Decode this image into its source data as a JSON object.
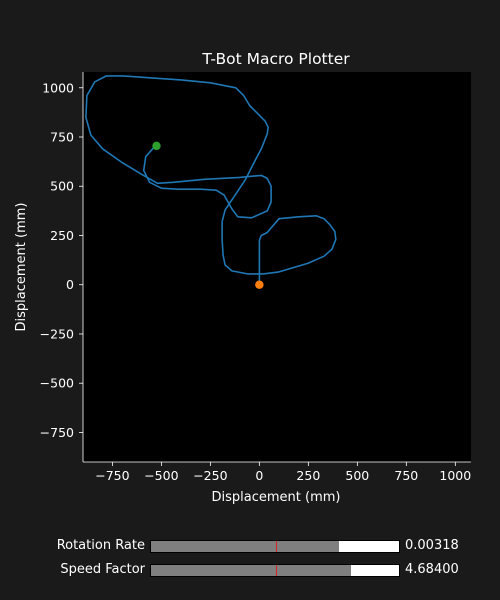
{
  "chart_data": {
    "type": "line",
    "title": "T-Bot Macro Plotter",
    "xlabel": "Displacement (mm)",
    "ylabel": "Displacement (mm)",
    "xlim": [
      -900,
      1080
    ],
    "ylim": [
      -900,
      1080
    ],
    "xticks": [
      -750,
      -500,
      -250,
      0,
      250,
      500,
      750,
      1000
    ],
    "yticks": [
      -750,
      -500,
      -250,
      0,
      250,
      500,
      750,
      1000
    ],
    "grid": false,
    "background": "#000000",
    "path_color": "#1f77b4",
    "series": [
      {
        "values": [
          [
            0,
            0
          ],
          [
            0,
            80
          ],
          [
            0,
            170
          ],
          [
            0,
            225
          ],
          [
            10,
            250
          ],
          [
            40,
            265
          ],
          [
            100,
            335
          ],
          [
            200,
            345
          ],
          [
            290,
            350
          ],
          [
            330,
            335
          ],
          [
            360,
            305
          ],
          [
            385,
            270
          ],
          [
            390,
            230
          ],
          [
            370,
            180
          ],
          [
            330,
            145
          ],
          [
            250,
            110
          ],
          [
            100,
            65
          ],
          [
            20,
            55
          ],
          [
            -60,
            55
          ],
          [
            -140,
            70
          ],
          [
            -175,
            100
          ],
          [
            -185,
            150
          ],
          [
            -190,
            230
          ],
          [
            -190,
            320
          ],
          [
            -175,
            380
          ],
          [
            -120,
            460
          ],
          [
            -70,
            535
          ],
          [
            -30,
            615
          ],
          [
            10,
            690
          ],
          [
            40,
            765
          ],
          [
            45,
            800
          ],
          [
            30,
            830
          ],
          [
            0,
            860
          ],
          [
            -50,
            910
          ],
          [
            -80,
            960
          ],
          [
            -120,
            1000
          ],
          [
            -250,
            1025
          ],
          [
            -400,
            1040
          ],
          [
            -550,
            1050
          ],
          [
            -700,
            1060
          ],
          [
            -780,
            1060
          ],
          [
            -840,
            1030
          ],
          [
            -880,
            960
          ],
          [
            -885,
            850
          ],
          [
            -860,
            760
          ],
          [
            -800,
            690
          ],
          [
            -700,
            620
          ],
          [
            -600,
            560
          ],
          [
            -520,
            515
          ],
          [
            -440,
            520
          ],
          [
            -280,
            535
          ],
          [
            -100,
            545
          ],
          [
            10,
            555
          ],
          [
            40,
            540
          ],
          [
            60,
            500
          ],
          [
            60,
            420
          ],
          [
            40,
            375
          ],
          [
            -40,
            340
          ],
          [
            -110,
            345
          ],
          [
            -140,
            385
          ],
          [
            -180,
            455
          ],
          [
            -220,
            480
          ],
          [
            -300,
            485
          ],
          [
            -420,
            485
          ],
          [
            -500,
            490
          ],
          [
            -560,
            520
          ],
          [
            -590,
            580
          ],
          [
            -580,
            650
          ],
          [
            -545,
            690
          ],
          [
            -525,
            705
          ]
        ]
      }
    ],
    "start_marker": {
      "x": 0,
      "y": 0,
      "color": "#ff7f0e"
    },
    "end_marker": {
      "x": -525,
      "y": 705,
      "color": "#2ca02c"
    }
  },
  "sliders": [
    {
      "label": "Rotation Rate",
      "value_text": "0.00318",
      "fill_fraction": 0.76,
      "init_fraction": 0.505,
      "fill_color": "#7f7f7f",
      "init_color": "#d62728"
    },
    {
      "label": "Speed Factor",
      "value_text": "4.68400",
      "fill_fraction": 0.805,
      "init_fraction": 0.505,
      "fill_color": "#7f7f7f",
      "init_color": "#d62728"
    }
  ]
}
